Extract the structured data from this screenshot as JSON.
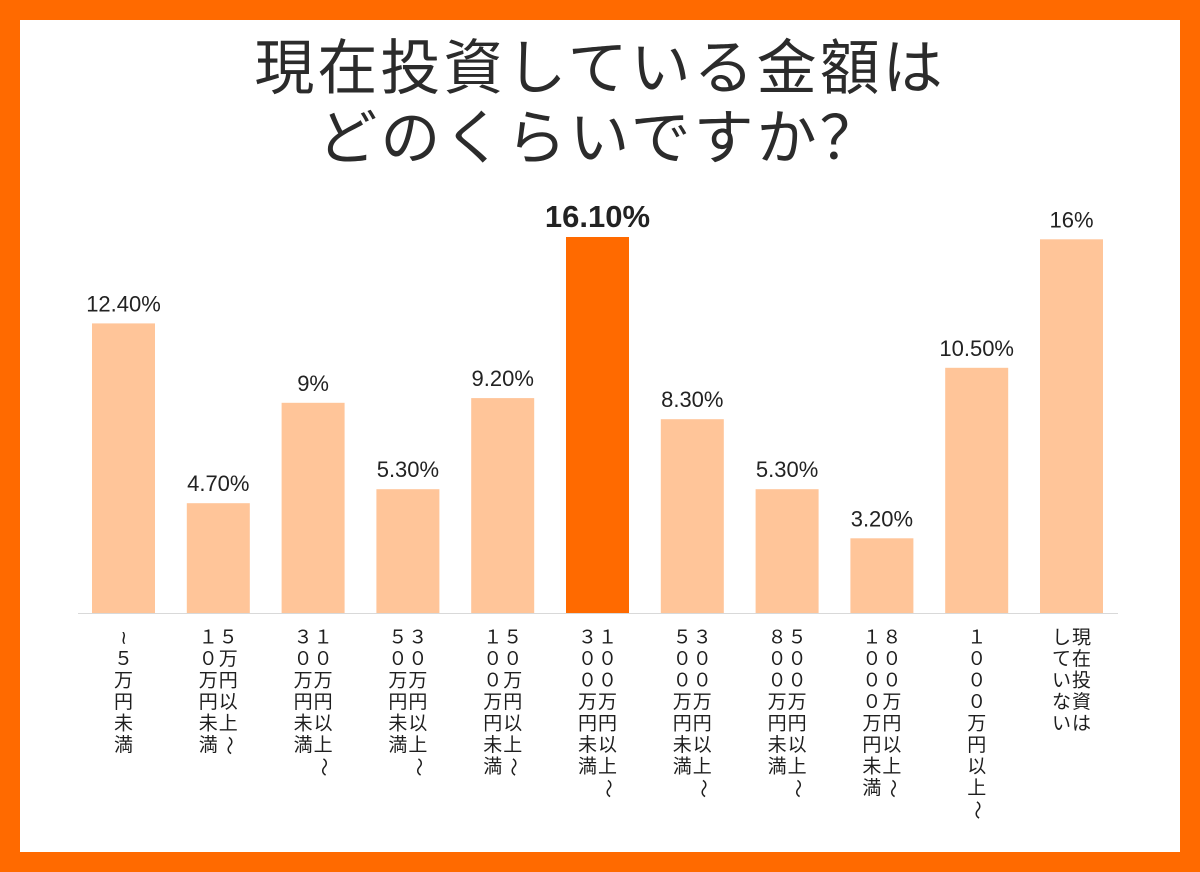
{
  "chart_data": {
    "type": "bar",
    "title_lines": [
      "現在投資している金額は",
      "どのくらいですか？"
    ],
    "categories": [
      [
        "~５万円未満"
      ],
      [
        "５万円以上～",
        "１０万円未満"
      ],
      [
        "１０万円以上～",
        "３０万円未満"
      ],
      [
        "３０万円以上～",
        "５０万円未満"
      ],
      [
        "５０万円以上～",
        "１００万円未満"
      ],
      [
        "１００万円以上～",
        "３００万円未満"
      ],
      [
        "３００万円以上～",
        "５００万円未満"
      ],
      [
        "５００万円以上～",
        "８００万円未満"
      ],
      [
        "８００万円以上～",
        "１０００万円未満"
      ],
      [
        "１０００万円以上～"
      ],
      [
        "現在投資は",
        "していない"
      ]
    ],
    "values": [
      12.4,
      4.7,
      9.0,
      5.3,
      9.2,
      16.1,
      8.3,
      5.3,
      3.2,
      10.5,
      16.0
    ],
    "value_labels": [
      "12.40%",
      "4.70%",
      "9%",
      "5.30%",
      "9.20%",
      "16.10%",
      "8.30%",
      "5.30%",
      "3.20%",
      "10.50%",
      "16%"
    ],
    "highlight_index": 5,
    "ylim": [
      0,
      16.1
    ],
    "grid": false,
    "colors": {
      "bar": "#FFC599",
      "highlight": "#FF6A00",
      "frame": "#FF6A00",
      "axis": "#D9D9D9"
    }
  }
}
